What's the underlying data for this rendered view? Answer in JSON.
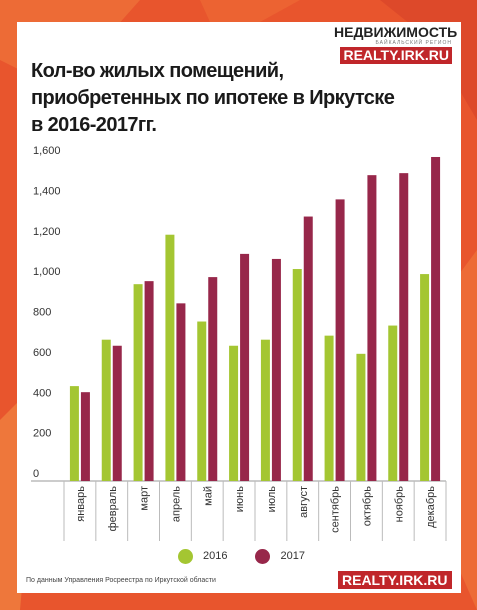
{
  "brand": {
    "name": "НЕДВИЖИМОСТЬ",
    "tagline": "БАЙКАЛЬСКИЙ РЕГИОН",
    "url": "REALTY.IRK.RU"
  },
  "footer": {
    "source": "По данным Управления Росреестра по Иркутской области",
    "url": "REALTY.IRK.RU"
  },
  "colors": {
    "background": "#e8552d",
    "series_2016": "#a4c632",
    "series_2017": "#97274a"
  },
  "chart_data": {
    "type": "bar",
    "title_lines": [
      "Кол-во жилых помещений,",
      "приобретенных по ипотеке в Иркутске",
      "в 2016-2017гг."
    ],
    "categories": [
      "январь",
      "февраль",
      "март",
      "апрель",
      "май",
      "июнь",
      "июль",
      "август",
      "сентябрь",
      "октябрь",
      "ноябрь",
      "декабрь"
    ],
    "series": [
      {
        "name": "2016",
        "color": "#a4c632",
        "values": [
          470,
          700,
          975,
          1220,
          790,
          670,
          700,
          1050,
          720,
          630,
          770,
          1025
        ]
      },
      {
        "name": "2017",
        "color": "#97274a",
        "values": [
          440,
          670,
          990,
          880,
          1010,
          1125,
          1100,
          1310,
          1395,
          1515,
          1525,
          1605
        ]
      }
    ],
    "ylim": [
      0,
      1600
    ],
    "yticks": [
      0,
      200,
      400,
      600,
      800,
      1000,
      1200,
      1400,
      1600
    ],
    "ytick_labels": [
      "0",
      "200",
      "400",
      "600",
      "800",
      "1,000",
      "1,200",
      "1,400",
      "1,600"
    ],
    "grid": false,
    "legend_position": "bottom-center"
  }
}
